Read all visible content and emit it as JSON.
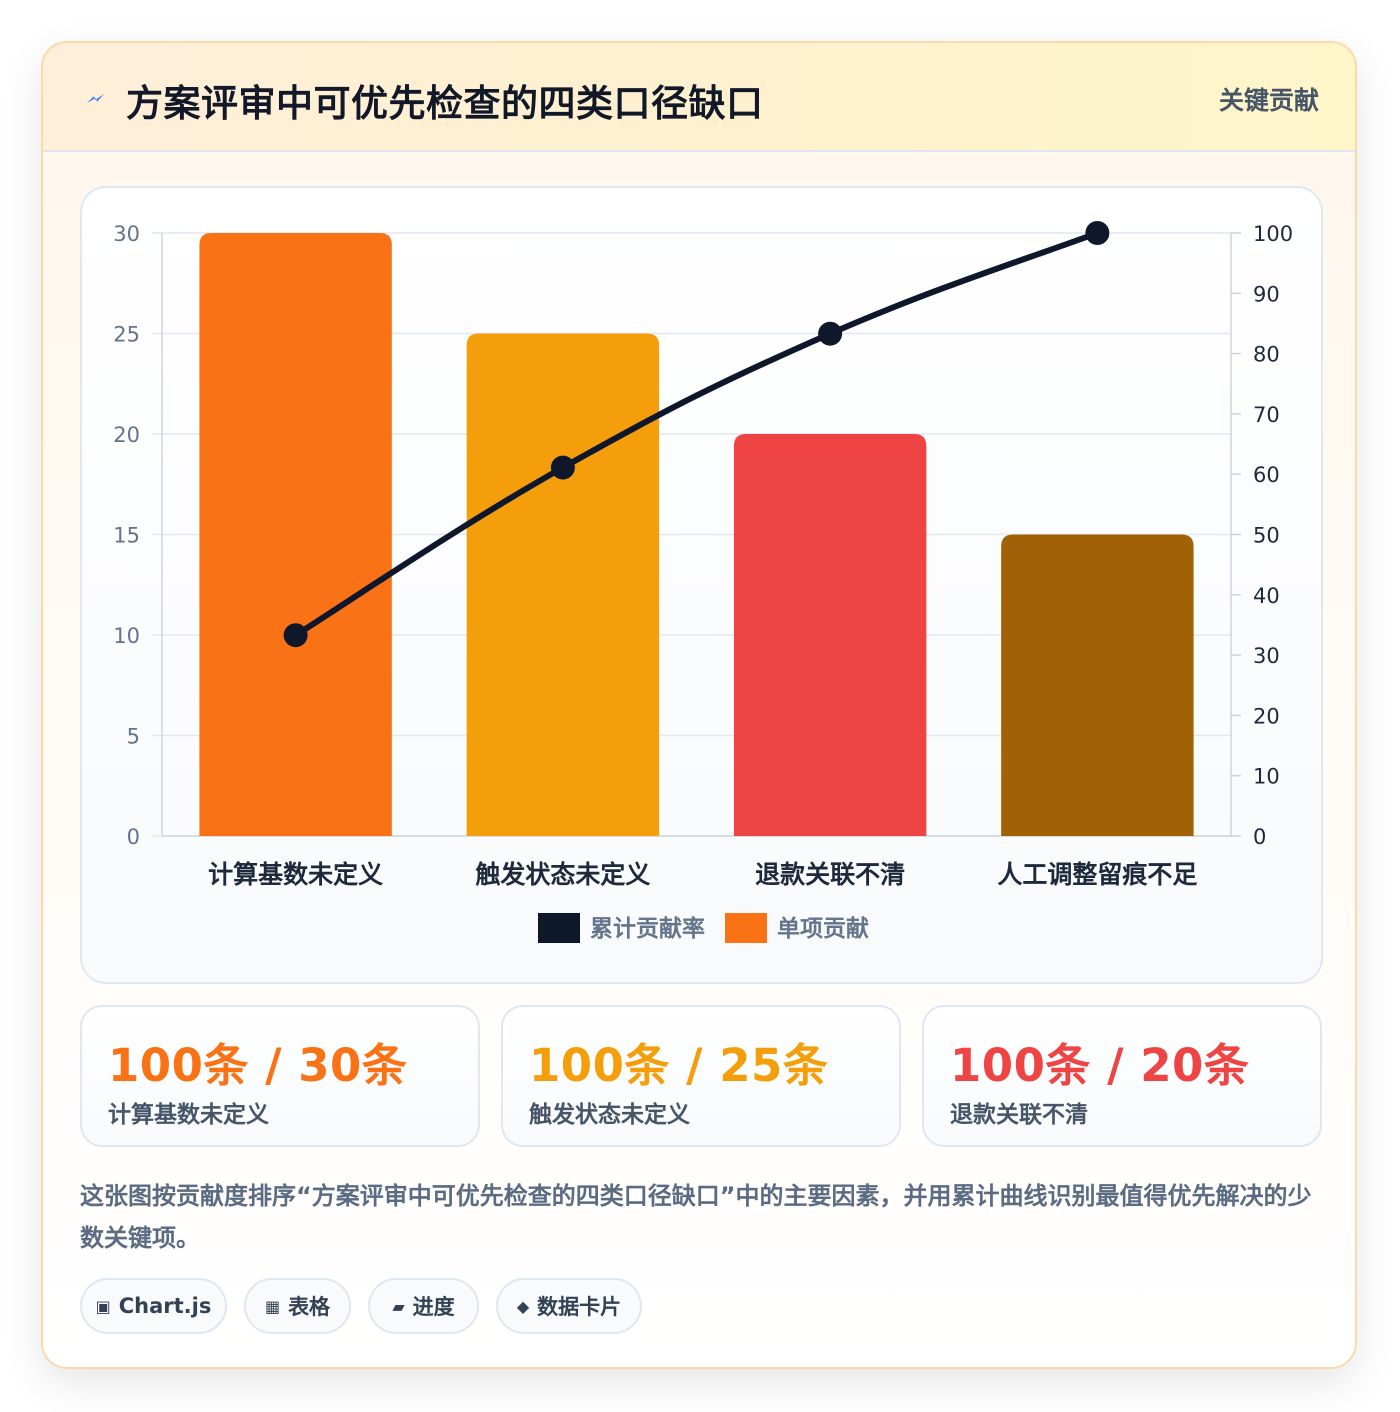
{
  "header": {
    "title": "方案评审中可优先检查的四类口径缺口",
    "badge": "关键贡献",
    "icon": "lightning-icon"
  },
  "chart_data": {
    "type": "bar",
    "categories": [
      "计算基数未定义",
      "触发状态未定义",
      "退款关联不清",
      "人工调整留痕不足"
    ],
    "series": [
      {
        "name": "单项贡献",
        "type": "bar",
        "axis": "left",
        "values": [
          30,
          25,
          20,
          15
        ]
      },
      {
        "name": "累计贡献率",
        "type": "line",
        "axis": "right",
        "values": [
          33.3,
          61.1,
          83.3,
          100
        ]
      }
    ],
    "bar_colors": [
      "#f97316",
      "#f59e0b",
      "#ef4444",
      "#a16207"
    ],
    "line_color": "#0f172a",
    "y_left": {
      "lim": [
        0,
        30
      ],
      "ticks": [
        "0",
        "5",
        "10",
        "15",
        "20",
        "25",
        "30"
      ]
    },
    "y_right": {
      "lim": [
        0,
        100
      ],
      "ticks": [
        "0",
        "10",
        "20",
        "30",
        "40",
        "50",
        "60",
        "70",
        "80",
        "90",
        "100"
      ]
    },
    "legend": [
      {
        "label": "累计贡献率",
        "color": "#0f172a"
      },
      {
        "label": "单项贡献",
        "color": "#f97316"
      }
    ],
    "legend_position": "bottom",
    "grid": true
  },
  "stats": [
    {
      "value": "100条 / 30条",
      "label": "计算基数未定义",
      "color": "#f97316"
    },
    {
      "value": "100条 / 25条",
      "label": "触发状态未定义",
      "color": "#f59e0b"
    },
    {
      "value": "100条 / 20条",
      "label": "退款关联不清",
      "color": "#ef4444"
    }
  ],
  "description": "这张图按贡献度排序“方案评审中可优先检查的四类口径缺口”中的主要因素，并用累计曲线识别最值得优先解决的少数关键项。",
  "tags": [
    {
      "icon": "▣",
      "icon_name": "chart-icon",
      "label": "Chart.js"
    },
    {
      "icon": "▦",
      "icon_name": "table-icon",
      "label": "表格"
    },
    {
      "icon": "▰",
      "icon_name": "progress-icon",
      "label": "进度"
    },
    {
      "icon": "◆",
      "icon_name": "data-card-icon",
      "label": "数据卡片"
    }
  ]
}
